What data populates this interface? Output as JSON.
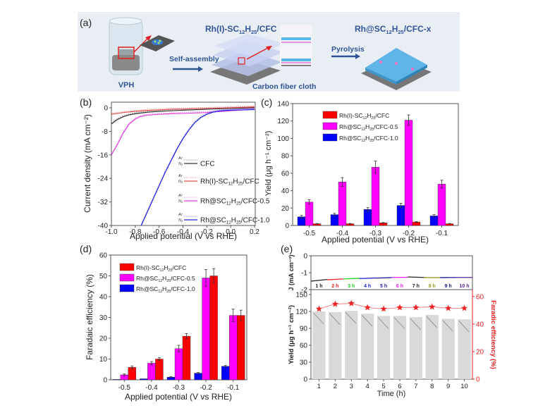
{
  "panel_a": {
    "label": "(a)",
    "vph_label": "VPH",
    "step1_label": "Self-assembly",
    "intermediate_title": "Rh(I)-SC",
    "intermediate_sub1": "12",
    "intermediate_mid": "H",
    "intermediate_sub2": "25",
    "intermediate_tail": "/CFC",
    "substrate_label": "Carbon fiber cloth",
    "step2_label": "Pyrolysis",
    "product_title": "Rh@SC",
    "product_sub1": "12",
    "product_mid": "H",
    "product_sub2": "25",
    "product_tail": "/CFC-x",
    "colors": {
      "text": "#2f5597",
      "arrow": "#2f5597",
      "highlight": "#e02020",
      "background": "#e9eef5"
    }
  },
  "chart_data": [
    {
      "panel": "(b)",
      "type": "line",
      "title": "",
      "xlabel": "Applied potential (V vs RHE)",
      "ylabel": "Current density (mA cm⁻²)",
      "xlim": [
        -1.0,
        0.25
      ],
      "ylim": [
        -40,
        2
      ],
      "xticks": [
        "-1.0",
        "-0.8",
        "-0.6",
        "-0.4",
        "-0.2",
        "0.0",
        "0.2"
      ],
      "xtick_values": [
        -1.0,
        -0.8,
        -0.6,
        -0.4,
        -0.2,
        0.0,
        0.2
      ],
      "yticks": [
        "0",
        "-8",
        "-16",
        "-24",
        "-32",
        "-40"
      ],
      "ytick_values": [
        0,
        -8,
        -16,
        -24,
        -32,
        -40
      ],
      "legend_position": "bottom-right",
      "legend_gas_top": "Ar",
      "legend_gas_bottom": "N₂",
      "series": [
        {
          "name": "CFC",
          "color": "#333333",
          "x": [
            -1.0,
            -0.95,
            -0.9,
            -0.85,
            -0.8,
            -0.7,
            -0.6,
            -0.5,
            -0.4,
            -0.2,
            0.0,
            0.2
          ],
          "y": [
            -5.5,
            -4.0,
            -3.0,
            -2.4,
            -2.0,
            -1.5,
            -1.2,
            -1.0,
            -0.8,
            -0.5,
            -0.2,
            0.0
          ]
        },
        {
          "name": "Rh(I)-SC12H25/CFC",
          "color": "#e05050",
          "x": [
            -1.0,
            -0.9,
            -0.8,
            -0.7,
            -0.6,
            -0.5,
            -0.4,
            -0.2,
            0.0,
            0.2
          ],
          "y": [
            -2.2,
            -1.6,
            -1.2,
            -0.9,
            -0.7,
            -0.5,
            -0.4,
            -0.2,
            0.0,
            0.3
          ]
        },
        {
          "name": "Rh@SC12H25/CFC-0.5",
          "color": "#e040e0",
          "x": [
            -1.0,
            -0.95,
            -0.9,
            -0.85,
            -0.8,
            -0.75,
            -0.7,
            -0.6,
            -0.5,
            -0.4,
            -0.2,
            0.0,
            0.2
          ],
          "y": [
            -16.0,
            -12.5,
            -8.5,
            -5.5,
            -3.8,
            -2.9,
            -2.5,
            -2.2,
            -2.0,
            -1.9,
            -1.6,
            -1.0,
            -0.5
          ]
        },
        {
          "name": "Rh@SC12H25/CFC-1.0",
          "color": "#2020e0",
          "x": [
            -0.75,
            -0.7,
            -0.65,
            -0.6,
            -0.55,
            -0.5,
            -0.45,
            -0.4,
            -0.35,
            -0.3,
            -0.25,
            -0.2,
            -0.15,
            -0.1,
            -0.05,
            0.0,
            0.1,
            0.2
          ],
          "y": [
            -40.0,
            -35.5,
            -31.0,
            -26.5,
            -22.0,
            -18.0,
            -14.0,
            -10.5,
            -7.5,
            -5.0,
            -3.3,
            -2.2,
            -1.5,
            -1.1,
            -0.9,
            -0.8,
            -0.7,
            -0.6
          ]
        }
      ]
    },
    {
      "panel": "(c)",
      "type": "bar",
      "title": "",
      "xlabel": "Applied potential (V vs RHE)",
      "ylabel": "Yield (μg h⁻¹ cm⁻²)",
      "categories": [
        "-0.5",
        "-0.4",
        "-0.3",
        "-0.2",
        "-0.1"
      ],
      "ylim": [
        0,
        140
      ],
      "yticks": [
        "0",
        "20",
        "40",
        "60",
        "80",
        "100",
        "120",
        "140"
      ],
      "ytick_values": [
        0,
        20,
        40,
        60,
        80,
        100,
        120,
        140
      ],
      "legend_position": "top-left",
      "series": [
        {
          "name": "Rh@SC12H25/CFC-1.0",
          "color": "#0000ff",
          "values": [
            10,
            12.5,
            18.5,
            23,
            11
          ],
          "errors": [
            1.5,
            1.5,
            2,
            2.5,
            1.5
          ]
        },
        {
          "name": "Rh@SC12H25/CFC-0.5",
          "color": "#ff00ff",
          "values": [
            27,
            50,
            67,
            121,
            47.5
          ],
          "errors": [
            2.5,
            5,
            7,
            6,
            4.5
          ]
        },
        {
          "name": "Rh(I)-SC12H25/CFC",
          "color": "#ff0000",
          "values": [
            2,
            2,
            3,
            4,
            2
          ],
          "errors": [
            0.3,
            0.3,
            0.4,
            0.5,
            0.3
          ]
        }
      ],
      "legend": [
        {
          "pre": "Rh(I)-SC",
          "s1": "12",
          "mid": "H",
          "s2": "25",
          "post": "/CFC",
          "color": "#ff0000"
        },
        {
          "pre": "Rh@SC",
          "s1": "12",
          "mid": "H",
          "s2": "25",
          "post": "/CFC-0.5",
          "color": "#ff00ff"
        },
        {
          "pre": "Rh@SC",
          "s1": "12",
          "mid": "H",
          "s2": "25",
          "post": "/CFC-1.0",
          "color": "#0000ff"
        }
      ]
    },
    {
      "panel": "(d)",
      "type": "bar",
      "title": "",
      "xlabel": "Applied potential (V vs RHE)",
      "ylabel": "Faradaic efficiency (%)",
      "categories": [
        "-0.5",
        "-0.4",
        "-0.3",
        "-0.2",
        "-0.1"
      ],
      "ylim": [
        0,
        60
      ],
      "yticks": [
        "0",
        "10",
        "20",
        "30",
        "40",
        "50",
        "60"
      ],
      "ytick_values": [
        0,
        10,
        20,
        30,
        40,
        50,
        60
      ],
      "legend_position": "top-left",
      "series": [
        {
          "name": "Rh@SC12H25/CFC-1.0",
          "color": "#0000ff",
          "values": [
            0.2,
            0.5,
            1.3,
            3.2,
            6.5
          ],
          "errors": [
            0,
            0,
            0.2,
            0.3,
            0.4
          ]
        },
        {
          "name": "Rh@SC12H25/CFC-0.5",
          "color": "#ff00ff",
          "values": [
            2.4,
            8,
            15,
            49,
            31
          ],
          "errors": [
            0.4,
            0.8,
            1.6,
            4,
            3
          ]
        },
        {
          "name": "Rh(I)-SC12H25/CFC",
          "color": "#ff0000",
          "values": [
            6,
            10,
            21,
            50,
            31
          ],
          "errors": [
            0.6,
            0.6,
            1.2,
            3.5,
            2.5
          ]
        }
      ],
      "legend": [
        {
          "pre": "Rh(I)-SC",
          "s1": "12",
          "mid": "H",
          "s2": "25",
          "post": "/CFC",
          "color": "#ff0000"
        },
        {
          "pre": "Rh@SC",
          "s1": "12",
          "mid": "H",
          "s2": "25",
          "post": "/CFC-0.5",
          "color": "#ff00ff"
        },
        {
          "pre": "Rh@SC",
          "s1": "12",
          "mid": "H",
          "s2": "25",
          "post": "/CFC-1.0",
          "color": "#0000ff"
        }
      ]
    },
    {
      "panel": "(e)",
      "type": "bar",
      "title": "",
      "xlabel": "Time (h)",
      "categories": [
        "1",
        "2",
        "3",
        "4",
        "5",
        "6",
        "7",
        "8",
        "9",
        "10"
      ],
      "top_axis": {
        "ylabel": "J (mA cm⁻²)",
        "ylim": [
          -2,
          0
        ],
        "yticks": [
          "0",
          "-1",
          "-2"
        ],
        "ytick_values": [
          0,
          -1,
          -2
        ],
        "segments": [
          {
            "label": "1 h",
            "color": "#222222",
            "start": -1.5,
            "end": -1.4
          },
          {
            "label": "2 h",
            "color": "#ee2222",
            "start": -1.42,
            "end": -1.37
          },
          {
            "label": "3 h",
            "color": "#22cc22",
            "start": -1.37,
            "end": -1.33
          },
          {
            "label": "4 h",
            "color": "#2222cc",
            "start": -1.35,
            "end": -1.31
          },
          {
            "label": "5 h",
            "color": "#222299",
            "start": -1.32,
            "end": -1.29
          },
          {
            "label": "6 h",
            "color": "#ee22ee",
            "start": -1.28,
            "end": -1.27
          },
          {
            "label": "7 h",
            "color": "#222222",
            "start": -1.25,
            "end": -1.28
          },
          {
            "label": "8 h",
            "color": "#999922",
            "start": -1.29,
            "end": -1.29
          },
          {
            "label": "9 h",
            "color": "#1a1a88",
            "start": -1.29,
            "end": -1.28
          },
          {
            "label": "10 h",
            "color": "#552299",
            "start": -1.28,
            "end": -1.28
          }
        ]
      },
      "left_axis": {
        "ylabel": "Yield (μg h⁻¹ cm⁻²)",
        "ylim": [
          0,
          150
        ],
        "yticks": [
          "0",
          "30",
          "60",
          "90",
          "120",
          "150"
        ],
        "ytick_values": [
          0,
          30,
          60,
          90,
          120,
          150
        ],
        "bar_color": "#d9d9d9",
        "values": [
          120,
          119,
          121,
          116,
          112,
          112,
          110,
          114,
          107,
          106
        ]
      },
      "right_axis": {
        "ylabel": "Faradic efficiency (%)",
        "color": "#ee2222",
        "ylim": [
          0,
          65
        ],
        "yticks": [
          "0",
          "20",
          "40",
          "60"
        ],
        "ytick_values": [
          0,
          20,
          40,
          60
        ],
        "marker": "star",
        "values": [
          51,
          54.5,
          55,
          52,
          51,
          52,
          52,
          52.5,
          51.5,
          51.5
        ]
      }
    }
  ]
}
